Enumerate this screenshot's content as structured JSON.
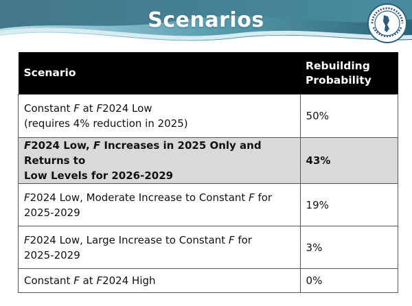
{
  "slide": {
    "title": "Scenarios"
  },
  "logo": {
    "text": "ATLANTIC STATES MARINE FISHERIES COMMISSION"
  },
  "table": {
    "headers": [
      "Scenario",
      "Rebuilding Probability"
    ],
    "rows": [
      {
        "scenario_line1": "Constant F at F2024 Low",
        "scenario_line2": "(requires 4% reduction in 2025)",
        "probability": "50%",
        "highlighted": false
      },
      {
        "scenario_line1": "F2024 Low, F Increases in 2025 Only and Returns to",
        "scenario_line2": "Low Levels for 2026-2029",
        "probability": "43%",
        "highlighted": true
      },
      {
        "scenario_line1": "F2024 Low, Moderate Increase to Constant F for",
        "scenario_line2": "2025-2029",
        "probability": "19%",
        "highlighted": false
      },
      {
        "scenario_line1": "F2024 Low, Large Increase to Constant F for",
        "scenario_line2": "2025-2029",
        "probability": "3%",
        "highlighted": false
      },
      {
        "scenario_line1": "Constant F at F2024 High",
        "scenario_line2": "",
        "probability": "0%",
        "highlighted": false
      }
    ]
  },
  "colors": {
    "banner_dark": "#2f6a7e",
    "banner_light": "#a8d4df",
    "header_bg": "#000000",
    "highlight_row": "#d9d9d9"
  }
}
